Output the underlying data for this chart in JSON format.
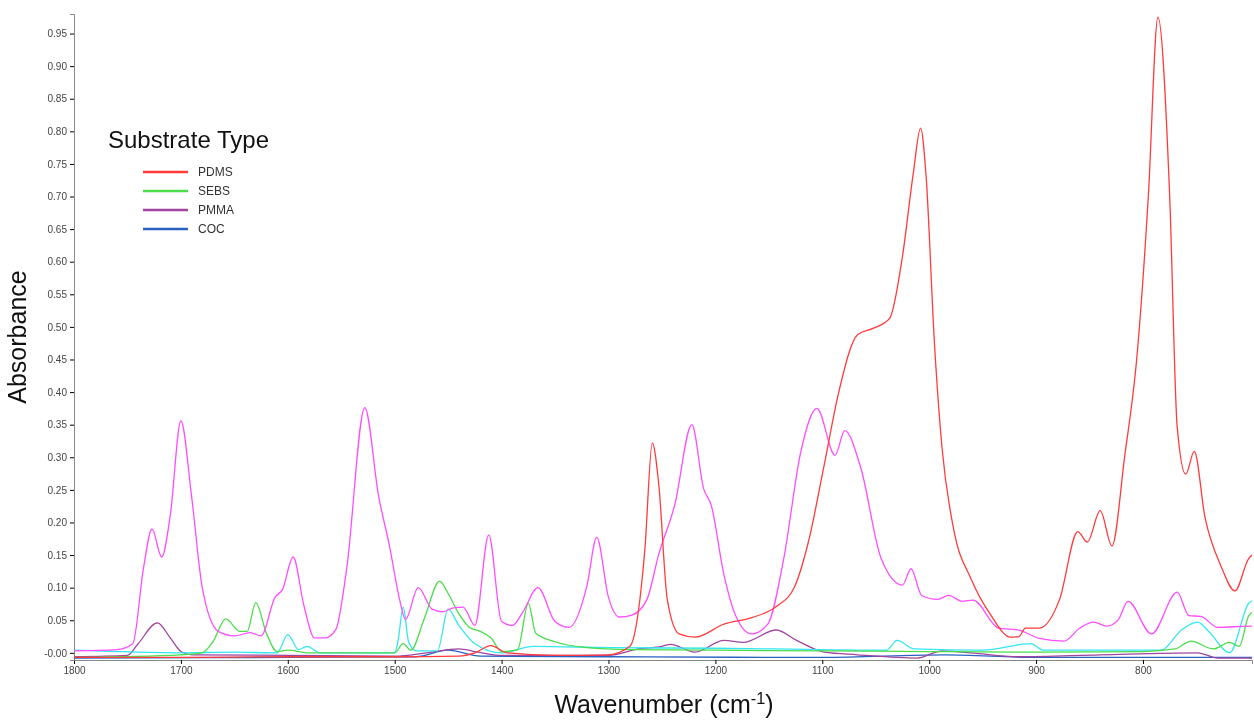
{
  "chart_data": {
    "type": "line",
    "xlabel": "Wavenumber (cm$^{-1}$)",
    "ylabel": "Absorbance",
    "legend_title": "Substrate Type",
    "legend": "top left",
    "grid": false,
    "marker": "none",
    "line_style": "solid",
    "xlim": [
      1800,
      698
    ],
    "xticks": [
      1800,
      1700,
      1600,
      1500,
      1400,
      1300,
      1200,
      1100,
      1000,
      900,
      800
    ],
    "ylim": [
      -0.011,
      0.98
    ],
    "yticks": [
      {
        "value": 0,
        "label": "-0.00"
      },
      {
        "value": 0.05,
        "label": "0.05"
      },
      {
        "value": 0.1,
        "label": "0.10"
      },
      {
        "value": 0.15,
        "label": "0.15"
      },
      {
        "value": 0.2,
        "label": "0.20"
      },
      {
        "value": 0.25,
        "label": "0.25"
      },
      {
        "value": 0.3,
        "label": "0.30"
      },
      {
        "value": 0.35,
        "label": "0.35"
      },
      {
        "value": 0.4,
        "label": "0.40"
      },
      {
        "value": 0.45,
        "label": "0.45"
      },
      {
        "value": 0.5,
        "label": "0.50"
      },
      {
        "value": 0.55,
        "label": "0.55"
      },
      {
        "value": 0.6,
        "label": "0.60"
      },
      {
        "value": 0.65,
        "label": "0.65"
      },
      {
        "value": 0.7,
        "label": "0.70"
      },
      {
        "value": 0.75,
        "label": "0.75"
      },
      {
        "value": 0.8,
        "label": "0.80"
      },
      {
        "value": 0.85,
        "label": "0.85"
      },
      {
        "value": 0.9,
        "label": "0.90"
      },
      {
        "value": 0.95,
        "label": "0.95"
      }
    ],
    "series": [
      {
        "name": "PDMS",
        "color": "#ff3b3b",
        "x": [
          1800,
          1700,
          1600,
          1500,
          1440,
          1425,
          1410,
          1395,
          1350,
          1300,
          1280,
          1266,
          1259,
          1253,
          1245,
          1234,
          1219,
          1192,
          1166,
          1143,
          1126,
          1113,
          1098,
          1085,
          1067,
          1052,
          1037,
          1025,
          1015,
          1008,
          1003,
          995,
          988,
          977,
          961,
          942,
          924,
          916,
          910,
          897,
          878,
          861,
          852,
          840,
          829,
          817,
          806,
          795,
          786,
          775,
          768,
          760,
          752,
          742,
          727,
          714,
          701,
          698
        ],
        "values": [
          -0.007,
          -0.007,
          -0.006,
          -0.006,
          -0.005,
          0.0,
          0.011,
          0.0,
          -0.004,
          -0.003,
          0.01,
          0.158,
          0.322,
          0.259,
          0.082,
          0.029,
          0.024,
          0.044,
          0.054,
          0.071,
          0.101,
          0.17,
          0.29,
          0.397,
          0.488,
          0.498,
          0.513,
          0.608,
          0.734,
          0.805,
          0.734,
          0.473,
          0.315,
          0.189,
          0.114,
          0.057,
          0.024,
          0.025,
          0.038,
          0.038,
          0.082,
          0.186,
          0.17,
          0.218,
          0.164,
          0.303,
          0.448,
          0.7,
          0.975,
          0.7,
          0.347,
          0.274,
          0.309,
          0.208,
          0.133,
          0.095,
          0.145,
          0.15
        ]
      },
      {
        "color": "#ff4dff",
        "x": [
          1800,
          1760,
          1745,
          1735,
          1727,
          1718,
          1710,
          1700,
          1690,
          1680,
          1665,
          1650,
          1635,
          1625,
          1612,
          1605,
          1595,
          1585,
          1575,
          1565,
          1555,
          1545,
          1528,
          1515,
          1505,
          1495,
          1490,
          1478,
          1465,
          1455,
          1445,
          1436,
          1425,
          1412,
          1400,
          1390,
          1380,
          1366,
          1350,
          1337,
          1320,
          1311,
          1300,
          1290,
          1278,
          1264,
          1253,
          1238,
          1222,
          1211,
          1204,
          1192,
          1181,
          1166,
          1151,
          1136,
          1120,
          1105,
          1088,
          1079,
          1064,
          1045,
          1025,
          1017,
          1007,
          992,
          982,
          969,
          959,
          935,
          916,
          897,
          874,
          859,
          846,
          834,
          823,
          814,
          792,
          768,
          757,
          746,
          730,
          701,
          698
        ],
        "values": [
          0.003,
          0.005,
          0.014,
          0.13,
          0.19,
          0.147,
          0.21,
          0.356,
          0.24,
          0.1,
          0.033,
          0.026,
          0.031,
          0.026,
          0.085,
          0.097,
          0.147,
          0.073,
          0.023,
          0.023,
          0.036,
          0.128,
          0.376,
          0.24,
          0.165,
          0.079,
          0.051,
          0.1,
          0.067,
          0.063,
          0.069,
          0.07,
          0.042,
          0.181,
          0.048,
          0.042,
          0.063,
          0.1,
          0.048,
          0.039,
          0.104,
          0.177,
          0.085,
          0.055,
          0.058,
          0.082,
          0.151,
          0.227,
          0.35,
          0.252,
          0.227,
          0.12,
          0.057,
          0.029,
          0.044,
          0.145,
          0.309,
          0.375,
          0.303,
          0.341,
          0.284,
          0.145,
          0.104,
          0.129,
          0.088,
          0.082,
          0.088,
          0.079,
          0.081,
          0.038,
          0.035,
          0.022,
          0.018,
          0.038,
          0.047,
          0.041,
          0.051,
          0.079,
          0.029,
          0.093,
          0.057,
          0.056,
          0.039,
          0.041,
          0.041
        ]
      },
      {
        "name": "SEBS",
        "color": "#4cdc4c",
        "x": [
          1800,
          1700,
          1680,
          1670,
          1658,
          1645,
          1638,
          1630,
          1620,
          1610,
          1600,
          1580,
          1500,
          1492,
          1485,
          1472,
          1458,
          1450,
          1440,
          1430,
          1420,
          1410,
          1400,
          1385,
          1375,
          1368,
          1350,
          1320,
          1280,
          1200,
          1100,
          1000,
          900,
          800,
          770,
          755,
          734,
          719,
          710,
          701,
          698
        ],
        "values": [
          -0.007,
          -0.003,
          0.0,
          0.017,
          0.052,
          0.033,
          0.033,
          0.077,
          0.03,
          0.002,
          0.004,
          0.0,
          0.0,
          0.014,
          0.004,
          0.054,
          0.11,
          0.091,
          0.06,
          0.039,
          0.033,
          0.023,
          0.002,
          0.005,
          0.076,
          0.03,
          0.017,
          0.008,
          0.005,
          0.004,
          0.003,
          0.002,
          0.001,
          0.002,
          0.006,
          0.018,
          0.006,
          0.016,
          0.01,
          0.057,
          0.062
        ]
      },
      {
        "color": "#33e6f2",
        "x": [
          1800,
          1700,
          1650,
          1610,
          1600,
          1590,
          1582,
          1570,
          1500,
          1497,
          1492,
          1487,
          1480,
          1460,
          1450,
          1440,
          1425,
          1400,
          1370,
          1300,
          1200,
          1100,
          1040,
          1030,
          1014,
          950,
          905,
          893,
          783,
          764,
          749,
          738,
          719,
          701,
          698
        ],
        "values": [
          0.004,
          0.0,
          0.001,
          0.0,
          0.028,
          0.005,
          0.01,
          0.0,
          0.0,
          0.017,
          0.07,
          0.017,
          0.003,
          0.003,
          0.067,
          0.042,
          0.014,
          0.0,
          0.01,
          0.008,
          0.007,
          0.005,
          0.004,
          0.019,
          0.006,
          0.004,
          0.014,
          0.004,
          0.004,
          0.035,
          0.047,
          0.032,
          0.0,
          0.076,
          0.08
        ]
      },
      {
        "name": "PMMA",
        "color": "#a045a0",
        "x": [
          1800,
          1750,
          1740,
          1722,
          1710,
          1700,
          1690,
          1500,
          1470,
          1440,
          1425,
          1400,
          1300,
          1272,
          1250,
          1242,
          1219,
          1192,
          1174,
          1143,
          1124,
          1098,
          1067,
          1011,
          988,
          961,
          916,
          840,
          749,
          730,
          698
        ],
        "values": [
          -0.006,
          -0.004,
          0.014,
          0.046,
          0.023,
          0.002,
          -0.003,
          -0.005,
          0.0,
          0.006,
          0.002,
          -0.004,
          -0.004,
          0.006,
          0.01,
          0.013,
          0.001,
          0.019,
          0.016,
          0.035,
          0.019,
          0.001,
          -0.003,
          -0.008,
          0.003,
          0.0,
          -0.006,
          -0.003,
          0.0,
          -0.008,
          -0.008
        ]
      },
      {
        "name": "COC",
        "color": "#2a62c4",
        "x": [
          1800,
          1600,
          1480,
          1450,
          1420,
          1300,
          1100,
          985,
          900,
          800,
          698
        ],
        "values": [
          -0.008,
          -0.007,
          -0.006,
          0.004,
          -0.005,
          -0.006,
          -0.007,
          -0.003,
          -0.007,
          -0.007,
          -0.007
        ]
      }
    ]
  }
}
